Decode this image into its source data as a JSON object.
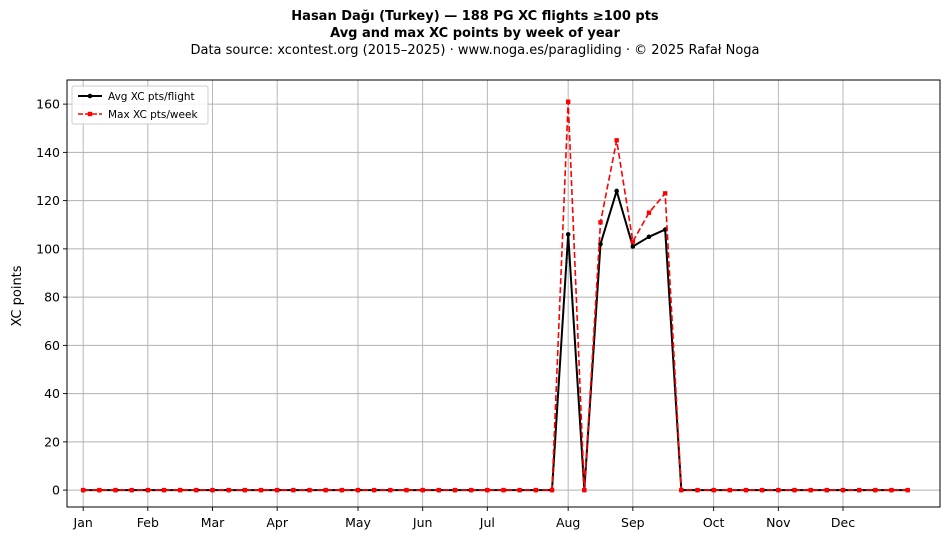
{
  "title_line1": "Hasan Dağı (Turkey)  —  188 PG XC flights ≥100 pts",
  "title_line2": "Avg and max XC points by week of year",
  "title_line3": "Data source: xcontest.org (2015–2025)  ·  www.noga.es/paragliding  ·  © 2025 Rafał Noga",
  "chart_data": {
    "type": "line",
    "title": "Hasan Dağı (Turkey)  —  188 PG XC flights ≥100 pts",
    "ylabel": "XC points",
    "xlabel": "",
    "ylim": [
      -7,
      170
    ],
    "yticks": [
      0,
      20,
      40,
      60,
      80,
      100,
      120,
      140,
      160
    ],
    "xticks": [
      {
        "label": "Jan",
        "week": 1
      },
      {
        "label": "Feb",
        "week": 5
      },
      {
        "label": "Mar",
        "week": 9
      },
      {
        "label": "Apr",
        "week": 13
      },
      {
        "label": "May",
        "week": 18
      },
      {
        "label": "Jun",
        "week": 22
      },
      {
        "label": "Jul",
        "week": 26
      },
      {
        "label": "Aug",
        "week": 31
      },
      {
        "label": "Sep",
        "week": 35
      },
      {
        "label": "Oct",
        "week": 40
      },
      {
        "label": "Nov",
        "week": 44
      },
      {
        "label": "Dec",
        "week": 48
      }
    ],
    "x": [
      1,
      2,
      3,
      4,
      5,
      6,
      7,
      8,
      9,
      10,
      11,
      12,
      13,
      14,
      15,
      16,
      17,
      18,
      19,
      20,
      21,
      22,
      23,
      24,
      25,
      26,
      27,
      28,
      29,
      30,
      31,
      32,
      33,
      34,
      35,
      36,
      37,
      38,
      39,
      40,
      41,
      42,
      43,
      44,
      45,
      46,
      47,
      48,
      49,
      50,
      51,
      52
    ],
    "grid": true,
    "legend_position": "top-left",
    "series": [
      {
        "name": "Avg XC pts/flight",
        "color": "#000000",
        "style": "solid",
        "marker": "circle",
        "values": [
          0,
          0,
          0,
          0,
          0,
          0,
          0,
          0,
          0,
          0,
          0,
          0,
          0,
          0,
          0,
          0,
          0,
          0,
          0,
          0,
          0,
          0,
          0,
          0,
          0,
          0,
          0,
          0,
          0,
          0,
          106,
          0,
          102,
          124,
          101,
          105,
          108,
          0,
          0,
          0,
          0,
          0,
          0,
          0,
          0,
          0,
          0,
          0,
          0,
          0,
          0,
          0
        ]
      },
      {
        "name": "Max XC pts/week",
        "color": "#ff0000",
        "style": "dashed",
        "marker": "square",
        "values": [
          0,
          0,
          0,
          0,
          0,
          0,
          0,
          0,
          0,
          0,
          0,
          0,
          0,
          0,
          0,
          0,
          0,
          0,
          0,
          0,
          0,
          0,
          0,
          0,
          0,
          0,
          0,
          0,
          0,
          0,
          161,
          0,
          111,
          145,
          103,
          115,
          123,
          0,
          0,
          0,
          0,
          0,
          0,
          0,
          0,
          0,
          0,
          0,
          0,
          0,
          0,
          0
        ]
      }
    ]
  }
}
